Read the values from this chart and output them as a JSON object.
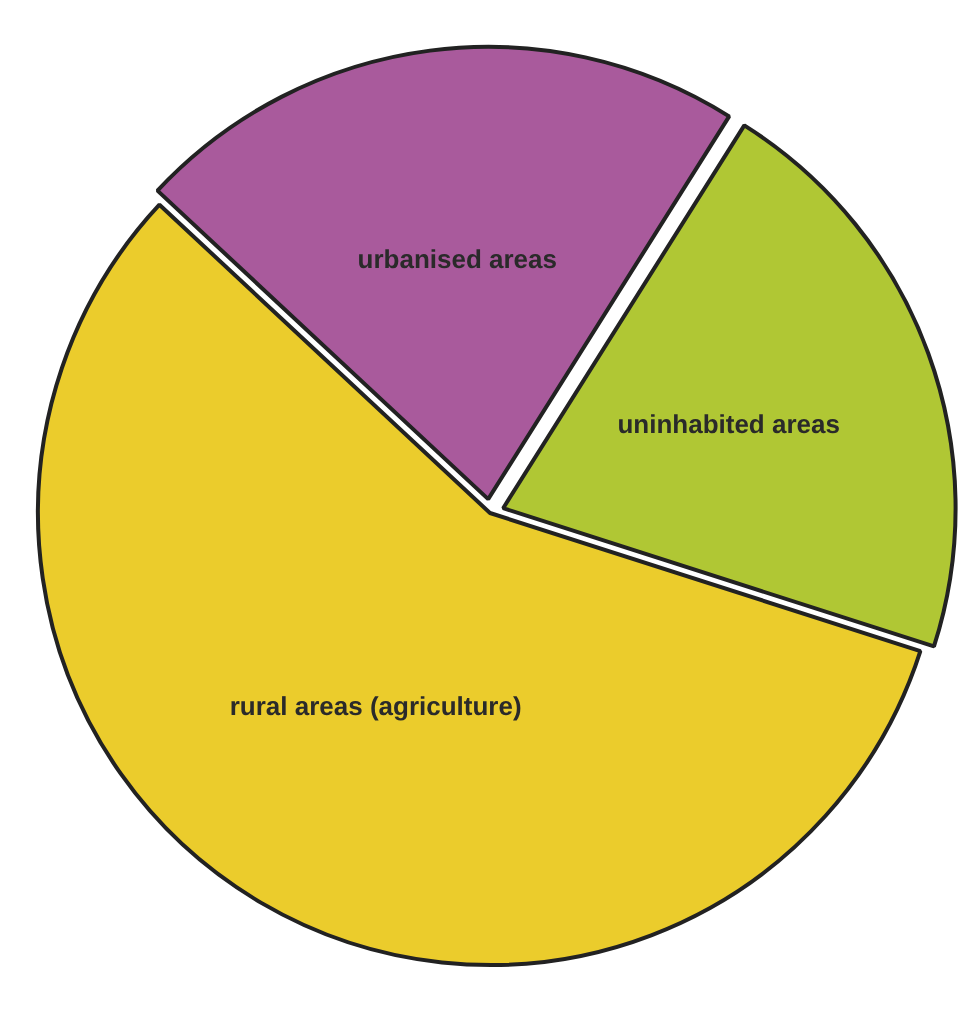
{
  "chart_data": {
    "type": "pie",
    "categories": [
      "urbanised areas",
      "uninhabited areas",
      "rural areas (agriculture)"
    ],
    "values": [
      22,
      21,
      57
    ],
    "colors": [
      "#a95a9c",
      "#b0c734",
      "#ebcc2c"
    ]
  }
}
